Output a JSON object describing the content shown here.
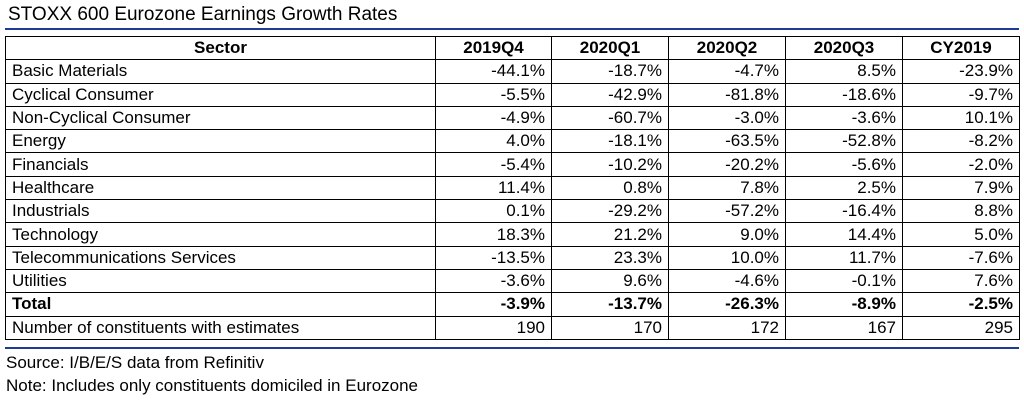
{
  "title": "STOXX 600 Eurozone Earnings Growth Rates",
  "columns": [
    "Sector",
    "2019Q4",
    "2020Q1",
    "2020Q2",
    "2020Q3",
    "CY2019"
  ],
  "rows": [
    {
      "label": "Basic Materials",
      "values": [
        "-44.1%",
        "-18.7%",
        "-4.7%",
        "8.5%",
        "-23.9%"
      ]
    },
    {
      "label": "Cyclical Consumer",
      "values": [
        "-5.5%",
        "-42.9%",
        "-81.8%",
        "-18.6%",
        "-9.7%"
      ]
    },
    {
      "label": "Non-Cyclical Consumer",
      "values": [
        "-4.9%",
        "-60.7%",
        "-3.0%",
        "-3.6%",
        "10.1%"
      ]
    },
    {
      "label": "Energy",
      "values": [
        "4.0%",
        "-18.1%",
        "-63.5%",
        "-52.8%",
        "-8.2%"
      ]
    },
    {
      "label": "Financials",
      "values": [
        "-5.4%",
        "-10.2%",
        "-20.2%",
        "-5.6%",
        "-2.0%"
      ]
    },
    {
      "label": "Healthcare",
      "values": [
        "11.4%",
        "0.8%",
        "7.8%",
        "2.5%",
        "7.9%"
      ]
    },
    {
      "label": "Industrials",
      "values": [
        "0.1%",
        "-29.2%",
        "-57.2%",
        "-16.4%",
        "8.8%"
      ]
    },
    {
      "label": "Technology",
      "values": [
        "18.3%",
        "21.2%",
        "9.0%",
        "14.4%",
        "5.0%"
      ]
    },
    {
      "label": "Telecommunications Services",
      "values": [
        "-13.5%",
        "23.3%",
        "10.0%",
        "11.7%",
        "-7.6%"
      ]
    },
    {
      "label": "Utilities",
      "values": [
        "-3.6%",
        "9.6%",
        "-4.6%",
        "-0.1%",
        "7.6%"
      ]
    }
  ],
  "total": {
    "label": "Total",
    "values": [
      "-3.9%",
      "-13.7%",
      "-26.3%",
      "-8.9%",
      "-2.5%"
    ]
  },
  "constituents": {
    "label": "Number of constituents with estimates",
    "values": [
      "190",
      "170",
      "172",
      "167",
      "295"
    ]
  },
  "source": "Source: I/B/E/S data from Refinitiv",
  "note": "Note: Includes only constituents domiciled in Eurozone",
  "rule_color": "#1f3a93",
  "chart_data": {
    "type": "table",
    "title": "STOXX 600 Eurozone Earnings Growth Rates",
    "columns": [
      "Sector",
      "2019Q4",
      "2020Q1",
      "2020Q2",
      "2020Q3",
      "CY2019"
    ],
    "rows": [
      [
        "Basic Materials",
        -44.1,
        -18.7,
        -4.7,
        8.5,
        -23.9
      ],
      [
        "Cyclical Consumer",
        -5.5,
        -42.9,
        -81.8,
        -18.6,
        -9.7
      ],
      [
        "Non-Cyclical Consumer",
        -4.9,
        -60.7,
        -3.0,
        -3.6,
        10.1
      ],
      [
        "Energy",
        4.0,
        -18.1,
        -63.5,
        -52.8,
        -8.2
      ],
      [
        "Financials",
        -5.4,
        -10.2,
        -20.2,
        -5.6,
        -2.0
      ],
      [
        "Healthcare",
        11.4,
        0.8,
        7.8,
        2.5,
        7.9
      ],
      [
        "Industrials",
        0.1,
        -29.2,
        -57.2,
        -16.4,
        8.8
      ],
      [
        "Technology",
        18.3,
        21.2,
        9.0,
        14.4,
        5.0
      ],
      [
        "Telecommunications Services",
        -13.5,
        23.3,
        10.0,
        11.7,
        -7.6
      ],
      [
        "Utilities",
        -3.6,
        9.6,
        -4.6,
        -0.1,
        7.6
      ],
      [
        "Total",
        -3.9,
        -13.7,
        -26.3,
        -8.9,
        -2.5
      ],
      [
        "Number of constituents with estimates",
        190,
        170,
        172,
        167,
        295
      ]
    ]
  }
}
